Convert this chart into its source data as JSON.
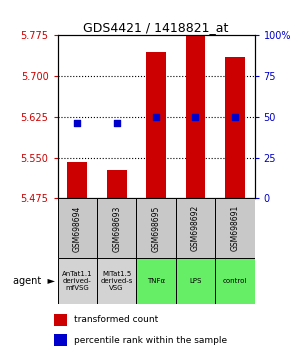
{
  "title": "GDS4421 / 1418821_at",
  "samples": [
    "GSM698694",
    "GSM698693",
    "GSM698695",
    "GSM698692",
    "GSM698691"
  ],
  "agents": [
    "AnTat1.1\nderived-\nmfVSG",
    "MITat1.5\nderived-s\nVSG",
    "TNFα",
    "LPS",
    "control"
  ],
  "agent_colors": [
    "#d3d3d3",
    "#d3d3d3",
    "#66ee66",
    "#66ee66",
    "#66ee66"
  ],
  "bar_values": [
    5.542,
    5.527,
    5.745,
    5.775,
    5.735
  ],
  "dot_values": [
    5.614,
    5.614,
    5.625,
    5.625,
    5.624
  ],
  "y_min": 5.475,
  "y_max": 5.775,
  "y_ticks_left": [
    5.475,
    5.55,
    5.625,
    5.7,
    5.775
  ],
  "y_ticks_right": [
    0,
    25,
    50,
    75,
    100
  ],
  "bar_color": "#cc0000",
  "dot_color": "#0000cc",
  "bar_width": 0.5,
  "legend_bar_label": "transformed count",
  "legend_dot_label": "percentile rank within the sample",
  "left_tick_color": "#cc0000",
  "right_tick_color": "#0000cc",
  "gsm_cell_color": "#c8c8c8"
}
